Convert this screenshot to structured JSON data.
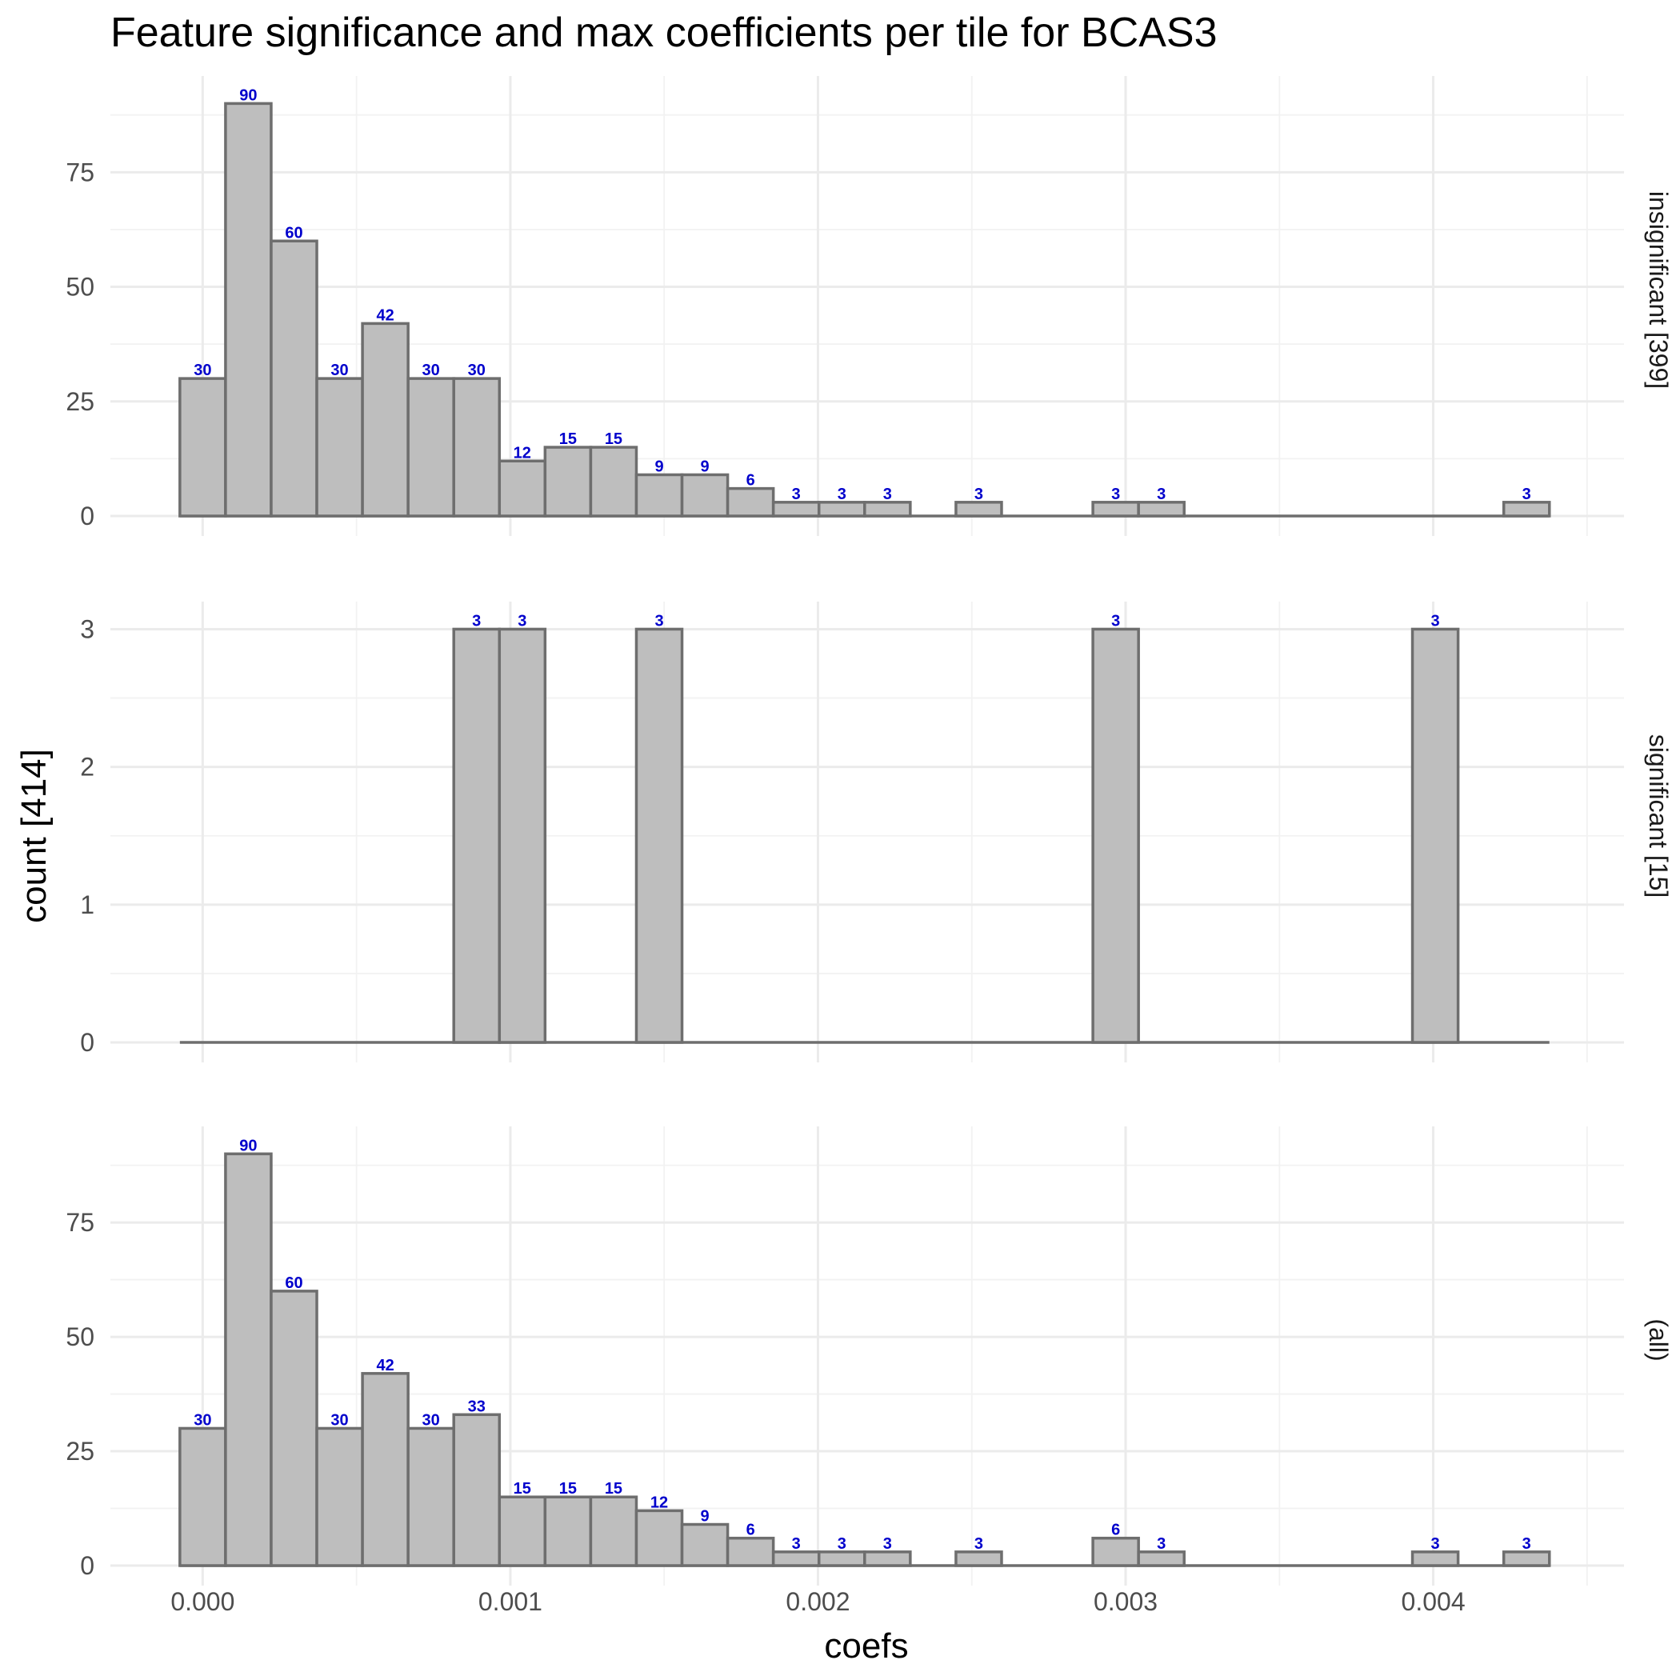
{
  "chart_data": {
    "type": "bar",
    "title": "Feature significance and max coefficients per tile for BCAS3",
    "xlabel": "coefs",
    "ylabel": "count [414]",
    "x_ticks": [
      "0.000",
      "0.001",
      "0.002",
      "0.003",
      "0.004"
    ],
    "x_tick_values": [
      0.0,
      0.001,
      0.002,
      0.003,
      0.004
    ],
    "xlim": [
      -0.0003,
      0.00462
    ],
    "bin_width": 0.00014839,
    "bin_centers": [
      0.0,
      0.00014839,
      0.00029678,
      0.00044517,
      0.00059356,
      0.00074195,
      0.00089034,
      0.00103873,
      0.00118712,
      0.00133551,
      0.0014839,
      0.00163229,
      0.00178068,
      0.00192907,
      0.00207746,
      0.00222585,
      0.00237424,
      0.00252263,
      0.00267102,
      0.00281941,
      0.0029678,
      0.00311619,
      0.00326458,
      0.00341297,
      0.00356136,
      0.00370975,
      0.00385814,
      0.00400653,
      0.00415492,
      0.00430331
    ],
    "grid": true,
    "panels": [
      {
        "strip_label": "insignificant [399]",
        "ylim": [
          0,
          96
        ],
        "y_ticks": [
          0,
          25,
          50,
          75
        ],
        "y_tick_labels": [
          "0",
          "25",
          "50",
          "75"
        ],
        "counts": [
          30,
          90,
          60,
          30,
          42,
          30,
          30,
          12,
          15,
          15,
          9,
          9,
          6,
          3,
          3,
          3,
          0,
          3,
          0,
          0,
          3,
          3,
          0,
          0,
          0,
          0,
          0,
          0,
          0,
          3
        ]
      },
      {
        "strip_label": "significant [15]",
        "ylim": [
          0,
          3.2
        ],
        "y_ticks": [
          0,
          1,
          2,
          3
        ],
        "y_tick_labels": [
          "0",
          "1",
          "2",
          "3"
        ],
        "counts": [
          0,
          0,
          0,
          0,
          0,
          0,
          3,
          3,
          0,
          0,
          3,
          0,
          0,
          0,
          0,
          0,
          0,
          0,
          0,
          0,
          3,
          0,
          0,
          0,
          0,
          0,
          0,
          3,
          0,
          0
        ]
      },
      {
        "strip_label": "(all)",
        "ylim": [
          0,
          96
        ],
        "y_ticks": [
          0,
          25,
          50,
          75
        ],
        "y_tick_labels": [
          "0",
          "25",
          "50",
          "75"
        ],
        "counts": [
          30,
          90,
          60,
          30,
          42,
          30,
          33,
          15,
          15,
          15,
          12,
          9,
          6,
          3,
          3,
          3,
          0,
          3,
          0,
          0,
          6,
          3,
          0,
          0,
          0,
          0,
          0,
          3,
          0,
          3
        ]
      }
    ],
    "colors": {
      "bar_fill": "#bebebe",
      "bar_outline": "#6e6e6e",
      "count_label": "#0000cc",
      "grid": "#ebebeb"
    }
  }
}
